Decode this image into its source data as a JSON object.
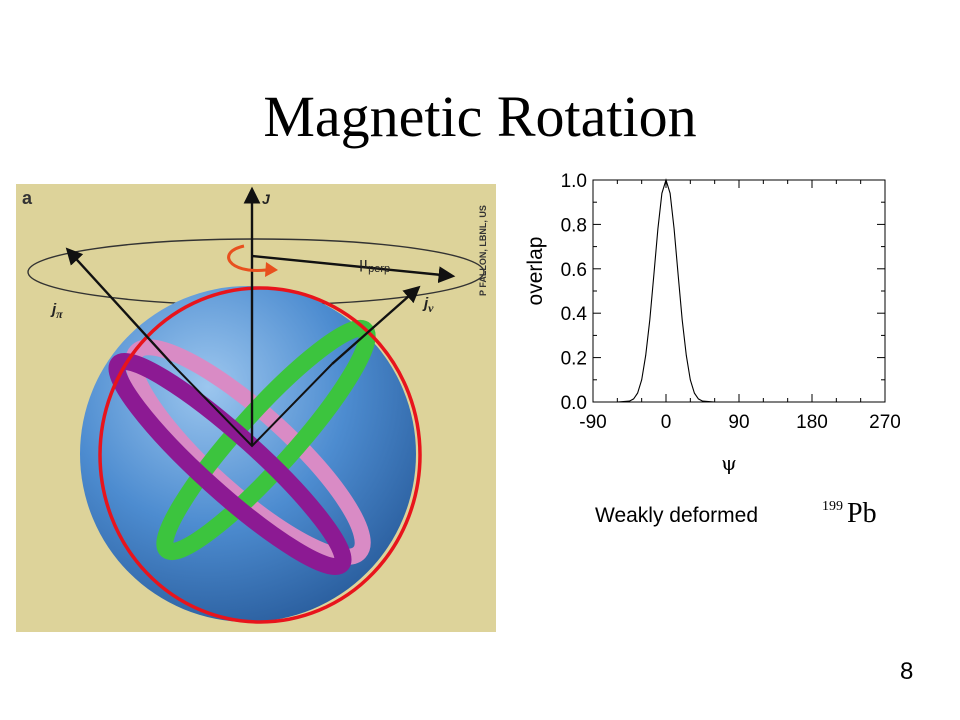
{
  "slide": {
    "title": "Magnetic Rotation",
    "caption": "Weakly deformed",
    "nucleus_mass": "199",
    "nucleus_symbol": "Pb",
    "page_number": "8"
  },
  "figure": {
    "panel_letter": "a",
    "credit": "P FALLON, LBNL, US",
    "label_J": "J",
    "label_mu": "μ",
    "label_mu_sub": "perp",
    "label_jpi": "j",
    "label_jpi_sub": "π",
    "label_jnu": "j",
    "label_jnu_sub": "ν",
    "colors": {
      "background": "#ddd39a",
      "sphere": "#4d8cd0",
      "pink_band": "#d98bc5",
      "purple_band": "#8c1a93",
      "green_band": "#3cc43e",
      "red_outline": "#e8141c",
      "orange_arrow": "#e8501e"
    }
  },
  "chart_data": {
    "type": "line",
    "title": "",
    "xlabel": "ψ",
    "ylabel": "overlap",
    "xlim": [
      -90,
      270
    ],
    "ylim": [
      0,
      1.0
    ],
    "xticks": [
      "-90",
      "0",
      "90",
      "180",
      "270"
    ],
    "yticks": [
      "0.0",
      "0.2",
      "0.4",
      "0.6",
      "0.8",
      "1.0"
    ],
    "grid": false,
    "series": [
      {
        "x": [
          -90,
          -60,
          -45,
          -40,
          -35,
          -30,
          -25,
          -20,
          -15,
          -10,
          -5,
          0,
          5,
          10,
          15,
          20,
          25,
          30,
          35,
          40,
          45,
          60,
          90,
          180,
          270
        ],
        "values": [
          0,
          0,
          0.004,
          0.014,
          0.04,
          0.1,
          0.21,
          0.37,
          0.57,
          0.78,
          0.94,
          1.0,
          0.94,
          0.78,
          0.57,
          0.37,
          0.21,
          0.1,
          0.04,
          0.014,
          0.004,
          0,
          0,
          0,
          0
        ]
      }
    ]
  }
}
